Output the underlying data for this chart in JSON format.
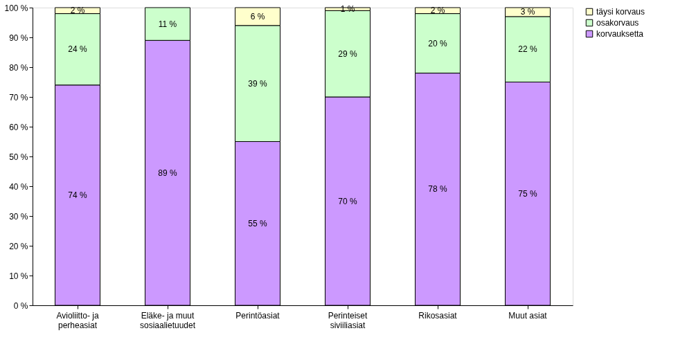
{
  "chart_data": {
    "type": "bar",
    "stacked": true,
    "categories": [
      "Avioliitto- ja\nperheasiat",
      "Eläke- ja muut\nsosiaalietuudet",
      "Perintöasiat",
      "Perinteiset\nsiviiliasiat",
      "Rikosasiat",
      "Muut asiat"
    ],
    "series": [
      {
        "name": "korvauksetta",
        "color": "#cc99ff",
        "values": [
          74,
          89,
          55,
          70,
          78,
          75
        ],
        "value_labels": [
          "74 %",
          "89 %",
          "55 %",
          "70 %",
          "78 %",
          "75 %"
        ]
      },
      {
        "name": "osakorvaus",
        "color": "#ccffcc",
        "values": [
          24,
          11,
          39,
          29,
          20,
          22
        ],
        "value_labels": [
          "24 %",
          "11 %",
          "39 %",
          "29 %",
          "20 %",
          "22 %"
        ]
      },
      {
        "name": "täysi korvaus",
        "color": "#ffffcc",
        "values": [
          2,
          null,
          6,
          1,
          2,
          3
        ],
        "value_labels": [
          "2 %",
          null,
          "6 %",
          "1 %",
          "2 %",
          "3 %"
        ]
      }
    ],
    "ylim": [
      0,
      100
    ],
    "yticks": [
      {
        "value": 0,
        "label": "0 %"
      },
      {
        "value": 10,
        "label": "10 %"
      },
      {
        "value": 20,
        "label": "20 %"
      },
      {
        "value": 30,
        "label": "30 %"
      },
      {
        "value": 40,
        "label": "40 %"
      },
      {
        "value": 50,
        "label": "50 %"
      },
      {
        "value": 60,
        "label": "60 %"
      },
      {
        "value": 70,
        "label": "70 %"
      },
      {
        "value": 80,
        "label": "80 %"
      },
      {
        "value": 90,
        "label": "90 %"
      },
      {
        "value": 100,
        "label": "100 %"
      }
    ],
    "grid": false,
    "legend": "right"
  }
}
